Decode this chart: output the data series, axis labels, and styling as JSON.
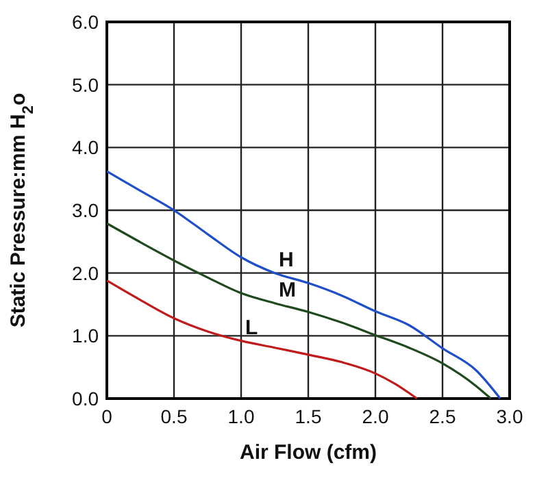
{
  "chart_data": {
    "type": "line",
    "xlabel": "Air Flow (cfm)",
    "ylabel": "Static Pressure:mm H$_{2}$o",
    "xlim": [
      0,
      3
    ],
    "ylim": [
      0,
      6
    ],
    "xticks": [
      0,
      0.5,
      {
        "value": 1,
        "label": "1.0"
      },
      1.5,
      {
        "value": 2,
        "label": "2.0"
      },
      2.5,
      {
        "value": 3,
        "label": "3.0"
      }
    ],
    "yticks": [
      {
        "value": 0,
        "label": "0.0"
      },
      {
        "value": 1,
        "label": "1.0"
      },
      {
        "value": 2,
        "label": "2.0"
      },
      {
        "value": 3,
        "label": "3.0"
      },
      {
        "value": 4,
        "label": "4.0"
      },
      {
        "value": 5,
        "label": "5.0"
      },
      {
        "value": 6,
        "label": "6.0"
      }
    ],
    "grid": true,
    "marker": "none",
    "line_style": "solid",
    "series": [
      {
        "name": "H",
        "color": "#1f4fc8",
        "x": [
          0,
          0.25,
          0.5,
          0.75,
          1,
          1.25,
          1.5,
          1.75,
          2,
          2.25,
          2.5,
          2.75,
          2.93
        ],
        "values": [
          3.62,
          3.31,
          3.0,
          2.62,
          2.25,
          2.0,
          1.84,
          1.64,
          1.39,
          1.17,
          0.8,
          0.45,
          0
        ]
      },
      {
        "name": "M",
        "color": "#1e4a1e",
        "x": [
          0,
          0.25,
          0.5,
          0.75,
          1,
          1.25,
          1.5,
          1.75,
          2,
          2.25,
          2.5,
          2.75,
          2.86
        ],
        "values": [
          2.79,
          2.49,
          2.2,
          1.93,
          1.68,
          1.52,
          1.38,
          1.21,
          1.01,
          0.81,
          0.56,
          0.2,
          0
        ]
      },
      {
        "name": "L",
        "color": "#c01a1a",
        "x": [
          0,
          0.25,
          0.5,
          0.75,
          1,
          1.25,
          1.5,
          1.75,
          2,
          2.15,
          2.25,
          2.31
        ],
        "values": [
          1.88,
          1.57,
          1.28,
          1.07,
          0.92,
          0.81,
          0.7,
          0.58,
          0.4,
          0.23,
          0.09,
          0
        ]
      }
    ]
  }
}
